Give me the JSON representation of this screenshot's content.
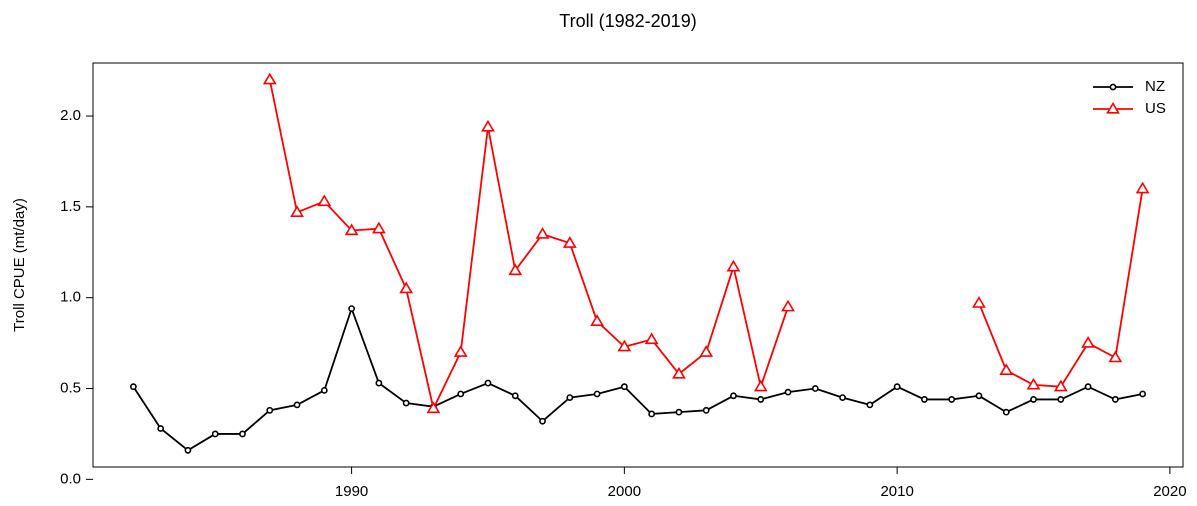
{
  "chart_data": {
    "type": "line",
    "title": "Troll (1982-2019)",
    "y_label": "Troll CPUE (mt/day)",
    "x": [
      1982,
      1983,
      1984,
      1985,
      1986,
      1987,
      1988,
      1989,
      1990,
      1991,
      1992,
      1993,
      1994,
      1995,
      1996,
      1997,
      1998,
      1999,
      2000,
      2001,
      2002,
      2003,
      2004,
      2005,
      2006,
      2007,
      2008,
      2009,
      2010,
      2011,
      2012,
      2013,
      2014,
      2015,
      2016,
      2017,
      2018,
      2019
    ],
    "series": [
      {
        "name": "NZ",
        "color": "#000000",
        "marker": "circle",
        "values": [
          0.51,
          0.28,
          0.16,
          0.25,
          0.25,
          0.38,
          0.41,
          0.49,
          0.94,
          0.53,
          0.42,
          0.4,
          0.47,
          0.53,
          0.46,
          0.32,
          0.45,
          0.47,
          0.51,
          0.36,
          0.37,
          0.38,
          0.46,
          0.44,
          0.48,
          0.5,
          0.45,
          0.41,
          0.51,
          0.44,
          0.44,
          0.46,
          0.37,
          0.44,
          0.44,
          0.51,
          0.44,
          0.47
        ]
      },
      {
        "name": "US",
        "color": "#ff0000",
        "marker": "triangle",
        "values": [
          null,
          null,
          null,
          null,
          null,
          2.2,
          1.47,
          1.53,
          1.37,
          1.38,
          1.05,
          0.39,
          0.7,
          1.94,
          1.15,
          1.35,
          1.3,
          0.87,
          0.73,
          0.77,
          0.58,
          0.7,
          1.17,
          0.51,
          0.95,
          null,
          null,
          null,
          null,
          null,
          null,
          0.97,
          0.6,
          0.52,
          0.51,
          0.75,
          0.67,
          1.6
        ]
      }
    ],
    "xlim": [
      1980.52,
      2020.48
    ],
    "xticks": [
      1990,
      2000,
      2010,
      2020
    ],
    "ylim": [
      0.068,
      2.292
    ],
    "yticks": [
      {
        "value": 0,
        "label": "0.0"
      },
      0.5,
      {
        "value": 1,
        "label": "1.0"
      },
      1.5,
      {
        "value": 2,
        "label": "2.0"
      }
    ],
    "legend": "top-right",
    "grid": false
  }
}
